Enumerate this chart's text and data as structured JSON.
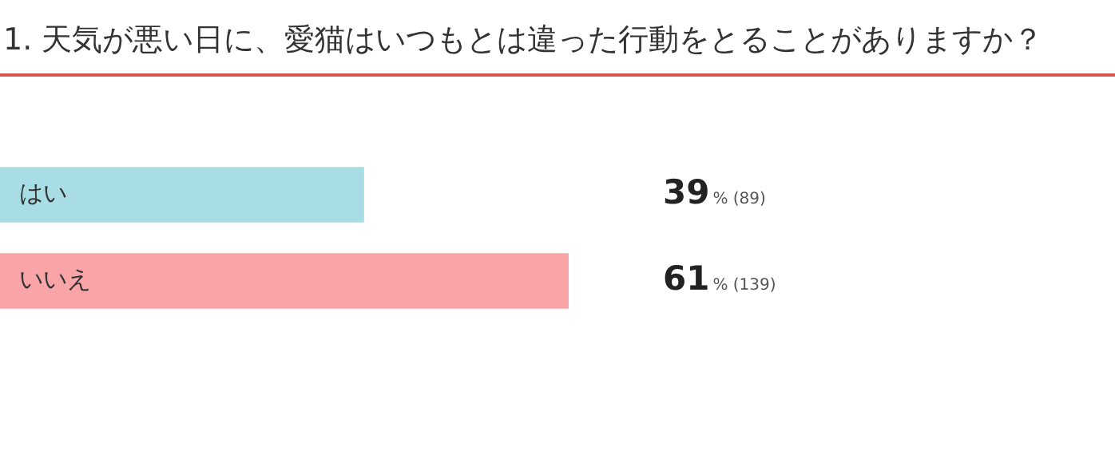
{
  "chart_data": {
    "type": "bar",
    "orientation": "horizontal",
    "title": "1. 天気が悪い日に、愛猫はいつもとは違った行動をとることがありますか？",
    "categories": [
      "はい",
      "いいえ"
    ],
    "values": [
      39,
      61
    ],
    "colors": [
      "#a8dde6",
      "#f9a5a8"
    ],
    "value_labels": [
      "39% (89)",
      "61% (139)"
    ],
    "legend": false,
    "tick_labels": false
  }
}
